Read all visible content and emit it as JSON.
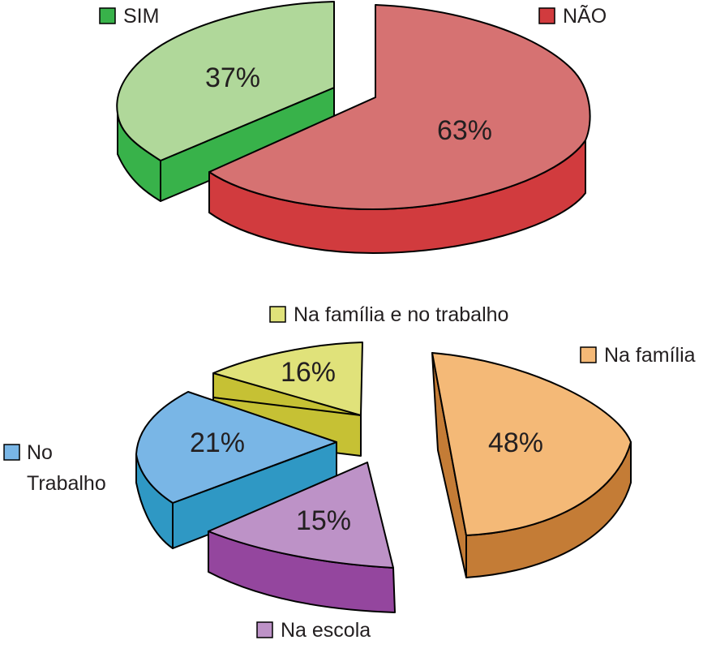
{
  "chart_data": [
    {
      "type": "pie",
      "style": "3d-exploded",
      "categories": [
        "SIM",
        "NÃO"
      ],
      "values": [
        37,
        63
      ],
      "data_labels": [
        "37%",
        "63%"
      ],
      "colors": {
        "top": [
          "#b0d89a",
          "#d67272"
        ],
        "side": [
          "#38b24a",
          "#d13b3e"
        ],
        "legend": [
          "#38b24a",
          "#d13b3e"
        ]
      },
      "legend": [
        {
          "label": "SIM",
          "color": "#38b24a"
        },
        {
          "label": "NÃO",
          "color": "#d13b3e"
        }
      ]
    },
    {
      "type": "pie",
      "style": "3d-exploded",
      "categories": [
        "Na família",
        "Na escola",
        "No Trabalho",
        "Na família e no trabalho"
      ],
      "values": [
        48,
        15,
        21,
        16
      ],
      "data_labels": [
        "48%",
        "15%",
        "21%",
        "16%"
      ],
      "colors": {
        "top": [
          "#f4b977",
          "#bd92c7",
          "#79b6e6",
          "#e0e27a"
        ],
        "side": [
          "#c47c36",
          "#94469e",
          "#2f98c4",
          "#c6c134"
        ],
        "legend": [
          "#f4b977",
          "#bd92c7",
          "#79b6e6",
          "#e0e27a"
        ]
      },
      "legend": [
        {
          "label": "Na família e no trabalho",
          "color": "#e0e27a"
        },
        {
          "label": "Na família",
          "color": "#f4b977"
        },
        {
          "label": "No",
          "label2": "Trabalho",
          "color": "#79b6e6"
        },
        {
          "label": "Na escola",
          "color": "#bd92c7"
        }
      ]
    }
  ]
}
